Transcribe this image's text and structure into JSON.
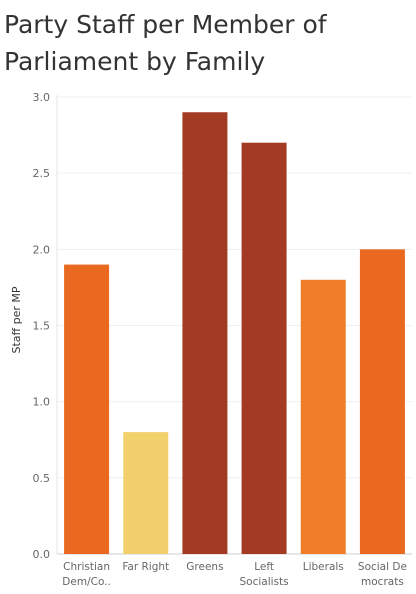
{
  "title_lines": [
    "Party Staff per Member of",
    "Parliament by Family"
  ],
  "chart_data": {
    "type": "bar",
    "title": "Party Staff per Member of Parliament by Family",
    "ylabel": "Staff per MP",
    "xlabel": "",
    "ylim": [
      0,
      3.0
    ],
    "yticks": [
      "0.0",
      "0.5",
      "1.0",
      "1.5",
      "2.0",
      "2.5",
      "3.0"
    ],
    "categories": [
      "Christian Dem/Co..",
      "Far Right",
      "Greens",
      "Left Socialists",
      "Liberals",
      "Social Democrats"
    ],
    "category_labels": [
      [
        "Christian",
        "Dem/Co.."
      ],
      [
        "Far Right"
      ],
      [
        "Greens"
      ],
      [
        "Left",
        "Socialists"
      ],
      [
        "Liberals"
      ],
      [
        "Social De",
        "mocrats"
      ]
    ],
    "values": [
      1.9,
      0.8,
      2.9,
      2.7,
      1.8,
      2.0
    ],
    "colors": [
      "#E8691F",
      "#F2D06B",
      "#A33A24",
      "#A33A24",
      "#F07D28",
      "#E8691F"
    ],
    "grid": true
  }
}
